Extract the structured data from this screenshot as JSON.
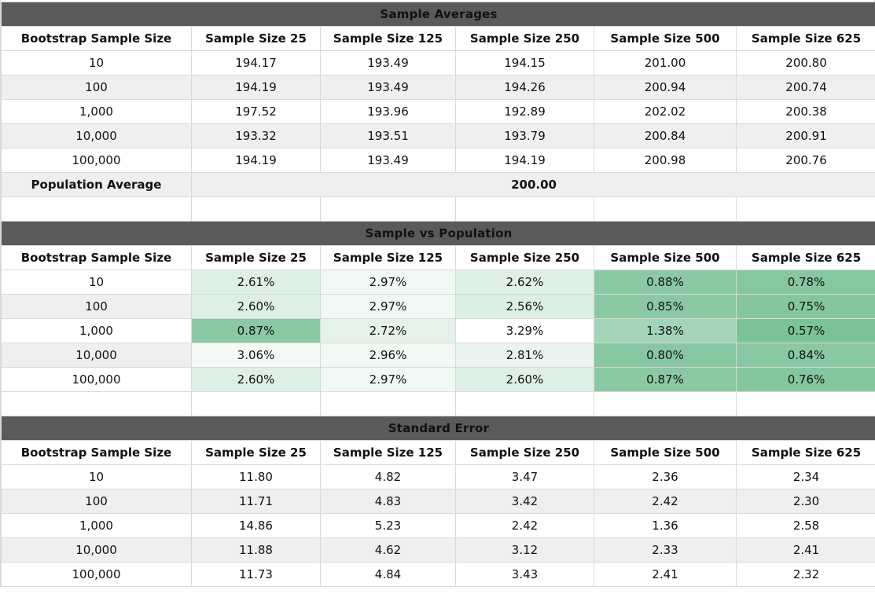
{
  "colors": {
    "title_bar_bg": "#595a5c",
    "title_text": "#ffffff",
    "column_header_text": "#4a7cf0",
    "row_stripe": "#efefef",
    "grid_border": "#d9d9d9",
    "heat_green_strong": "#7cc298",
    "heat_green_light": "#f0f8f3"
  },
  "columns": [
    "Bootstrap Sample Size",
    "Sample Size 25",
    "Sample Size 125",
    "Sample Size 250",
    "Sample Size 500",
    "Sample Size 625"
  ],
  "tables": [
    {
      "title": "Sample Averages",
      "rows": [
        {
          "label": "10",
          "values": [
            "194.17",
            "193.49",
            "194.15",
            "201.00",
            "200.80"
          ]
        },
        {
          "label": "100",
          "values": [
            "194.19",
            "193.49",
            "194.26",
            "200.94",
            "200.74"
          ]
        },
        {
          "label": "1,000",
          "values": [
            "197.52",
            "193.96",
            "192.89",
            "202.02",
            "200.38"
          ]
        },
        {
          "label": "10,000",
          "values": [
            "193.32",
            "193.51",
            "193.79",
            "200.84",
            "200.91"
          ]
        },
        {
          "label": "100,000",
          "values": [
            "194.19",
            "193.49",
            "194.19",
            "200.98",
            "200.76"
          ]
        }
      ],
      "footer": {
        "label": "Population Average",
        "value": "200.00"
      }
    },
    {
      "title": "Sample vs Population",
      "rows": [
        {
          "label": "10",
          "values": [
            "2.61%",
            "2.97%",
            "2.62%",
            "0.88%",
            "0.78%"
          ],
          "cell_colors": [
            "#def0e5",
            "#f0f8f3",
            "#dff0e6",
            "#8bc9a4",
            "#86c7a0"
          ]
        },
        {
          "label": "100",
          "values": [
            "2.60%",
            "2.97%",
            "2.56%",
            "0.85%",
            "0.75%"
          ],
          "cell_colors": [
            "#def0e5",
            "#f0f8f3",
            "#dcefe3",
            "#89c8a3",
            "#85c69f"
          ]
        },
        {
          "label": "1,000",
          "values": [
            "0.87%",
            "2.72%",
            "3.29%",
            "1.38%",
            "0.57%"
          ],
          "cell_colors": [
            "#8ac9a3",
            "#e4f2e9",
            "#ffffff",
            "#a3d4b7",
            "#7cc298"
          ]
        },
        {
          "label": "10,000",
          "values": [
            "3.06%",
            "2.96%",
            "2.81%",
            "0.80%",
            "0.84%"
          ],
          "cell_colors": [
            "#f4faf6",
            "#eff8f3",
            "#e8f4ed",
            "#87c7a1",
            "#89c8a2"
          ]
        },
        {
          "label": "100,000",
          "values": [
            "2.60%",
            "2.97%",
            "2.60%",
            "0.87%",
            "0.76%"
          ],
          "cell_colors": [
            "#def0e5",
            "#f0f8f3",
            "#def0e5",
            "#8ac9a3",
            "#85c69f"
          ]
        }
      ]
    },
    {
      "title": "Standard Error",
      "rows": [
        {
          "label": "10",
          "values": [
            "11.80",
            "4.82",
            "3.47",
            "2.36",
            "2.34"
          ]
        },
        {
          "label": "100",
          "values": [
            "11.71",
            "4.83",
            "3.42",
            "2.42",
            "2.30"
          ]
        },
        {
          "label": "1,000",
          "values": [
            "14.86",
            "5.23",
            "2.42",
            "1.36",
            "2.58"
          ]
        },
        {
          "label": "10,000",
          "values": [
            "11.88",
            "4.62",
            "3.12",
            "2.33",
            "2.41"
          ]
        },
        {
          "label": "100,000",
          "values": [
            "11.73",
            "4.84",
            "3.43",
            "2.41",
            "2.32"
          ]
        }
      ]
    }
  ]
}
